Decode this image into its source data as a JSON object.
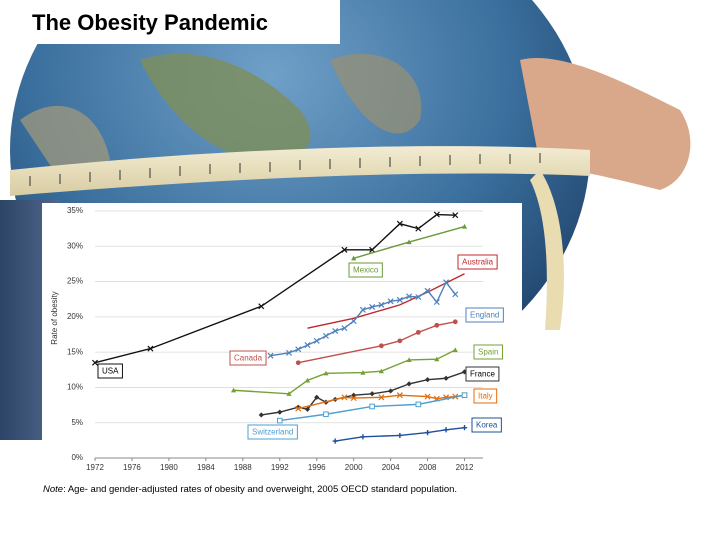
{
  "title": "The Obesity Pandemic",
  "chart_data": {
    "type": "line",
    "y_label": "Rate of obesity",
    "note_label": "Note",
    "note_text": ": Age- and gender-adjusted rates of obesity and overweight, 2005 OECD standard population.",
    "xlim": [
      1972,
      2014
    ],
    "xticks": [
      1972,
      1976,
      1980,
      1984,
      1988,
      1992,
      1996,
      2000,
      2004,
      2008,
      2012
    ],
    "ylim": [
      0,
      35
    ],
    "yticks": [
      {
        "value": 0,
        "label": "0%"
      },
      {
        "value": 5,
        "label": "5%"
      },
      {
        "value": 10,
        "label": "10%"
      },
      {
        "value": 15,
        "label": "15%"
      },
      {
        "value": 20,
        "label": "20%"
      },
      {
        "value": 25,
        "label": "25%"
      },
      {
        "value": 30,
        "label": "30%"
      },
      {
        "value": 35,
        "label": "35%"
      }
    ],
    "grid": true,
    "series": [
      {
        "name": "USA",
        "color": "#111111",
        "marker": "x",
        "x": [
          1972,
          1978,
          1990,
          1999,
          2002,
          2005,
          2007,
          2009,
          2011
        ],
        "values": [
          13.5,
          15.5,
          21.5,
          29.5,
          29.5,
          33.2,
          32.5,
          34.5,
          34.4
        ]
      },
      {
        "name": "Mexico",
        "color": "#6a9a3a",
        "marker": "triangle",
        "x": [
          2000,
          2006,
          2012
        ],
        "values": [
          28.3,
          30.6,
          32.8
        ]
      },
      {
        "name": "Australia",
        "color": "#c0282d",
        "marker": "none",
        "x": [
          1995,
          2000,
          2005,
          2008,
          2012
        ],
        "values": [
          18.4,
          19.8,
          21.7,
          23.5,
          26.1
        ]
      },
      {
        "name": "England",
        "color": "#4f81bd",
        "marker": "x",
        "x": [
          1991,
          1993,
          1994,
          1995,
          1996,
          1997,
          1998,
          1999,
          2000,
          2001,
          2002,
          2003,
          2004,
          2005,
          2006,
          2007,
          2008,
          2009,
          2010,
          2011
        ],
        "values": [
          14.5,
          14.9,
          15.4,
          16.0,
          16.6,
          17.3,
          18.0,
          18.4,
          19.4,
          21.0,
          21.4,
          21.7,
          22.2,
          22.4,
          22.9,
          22.8,
          23.7,
          22.1,
          24.9,
          23.2
        ]
      },
      {
        "name": "Canada",
        "color": "#c0504d",
        "marker": "circle",
        "x": [
          1994,
          2003,
          2005,
          2007,
          2009,
          2011
        ],
        "values": [
          13.5,
          15.9,
          16.6,
          17.8,
          18.8,
          19.3
        ]
      },
      {
        "name": "Spain",
        "color": "#76a035",
        "marker": "triangle",
        "x": [
          1987,
          1993,
          1995,
          1997,
          2001,
          2003,
          2006,
          2009,
          2011
        ],
        "values": [
          9.6,
          9.1,
          11.0,
          12.0,
          12.1,
          12.3,
          13.9,
          14.0,
          15.3
        ]
      },
      {
        "name": "France",
        "color": "#333333",
        "marker": "diamond",
        "x": [
          1990,
          1992,
          1994,
          1995,
          1996,
          1997,
          1998,
          2000,
          2002,
          2004,
          2006,
          2008,
          2010,
          2012
        ],
        "values": [
          6.1,
          6.5,
          7.2,
          6.9,
          8.6,
          7.9,
          8.3,
          8.9,
          9.1,
          9.5,
          10.5,
          11.1,
          11.3,
          12.2
        ]
      },
      {
        "name": "Italy",
        "color": "#e46c0a",
        "marker": "x",
        "x": [
          1994,
          1999,
          2000,
          2003,
          2005,
          2008,
          2009,
          2010,
          2011,
          2012
        ],
        "values": [
          7.0,
          8.6,
          8.5,
          8.6,
          8.9,
          8.7,
          8.4,
          8.6,
          8.7,
          8.9
        ]
      },
      {
        "name": "Switzerland",
        "color": "#4f9fcf",
        "marker": "square",
        "x": [
          1992,
          1997,
          2002,
          2007,
          2012
        ],
        "values": [
          5.3,
          6.2,
          7.3,
          7.6,
          8.9
        ]
      },
      {
        "name": "Korea",
        "color": "#1f4e9c",
        "marker": "plus",
        "x": [
          1998,
          2001,
          2005,
          2008,
          2010,
          2012
        ],
        "values": [
          2.4,
          3.0,
          3.2,
          3.6,
          4.0,
          4.3
        ]
      }
    ]
  }
}
